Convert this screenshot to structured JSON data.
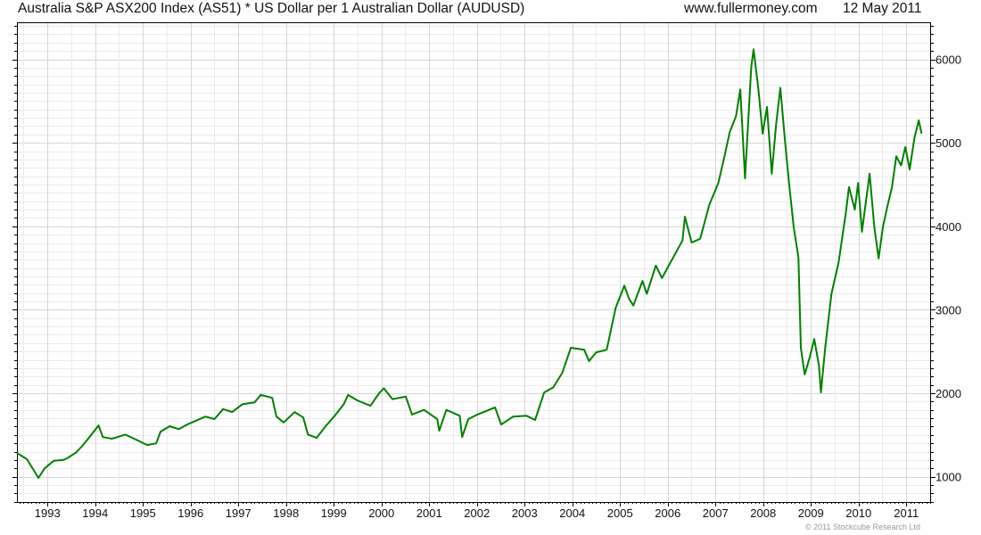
{
  "header": {
    "title": "Australia S&P ASX200 Index (AS51) * US Dollar per 1 Australian Dollar (AUDUSD)",
    "site": "www.fullermoney.com",
    "date": "12 May 2011"
  },
  "footer": {
    "copyright": "© 2011 Stockcube Research Ltd"
  },
  "colors": {
    "line": "#008000",
    "grid_major": "#d6d6d6",
    "grid_minor": "#ebebeb",
    "axis": "#000000"
  },
  "chart_data": {
    "type": "line",
    "title": "Australia S&P ASX200 Index (AS51) * US Dollar per 1 Australian Dollar (AUDUSD)",
    "xlabel": "",
    "ylabel": "",
    "xlim": [
      1992.36,
      2011.5
    ],
    "ylim": [
      697,
      6444
    ],
    "grid": true,
    "y_axis_side": "right",
    "x_tick_labels": [
      "1993",
      "1994",
      "1995",
      "1996",
      "1997",
      "1998",
      "1999",
      "2000",
      "2001",
      "2002",
      "2003",
      "2004",
      "2005",
      "2006",
      "2007",
      "2008",
      "2009",
      "2010",
      "2011"
    ],
    "y_tick_labels": [
      "1000",
      "2000",
      "3000",
      "4000",
      "5000",
      "6000"
    ],
    "series": [
      {
        "name": "AS51 * AUDUSD",
        "x": [
          1992.36,
          1992.57,
          1992.81,
          1992.94,
          1993.13,
          1993.32,
          1993.41,
          1993.6,
          1993.73,
          1993.88,
          1994.07,
          1994.16,
          1994.35,
          1994.63,
          1994.91,
          1995.09,
          1995.28,
          1995.37,
          1995.56,
          1995.75,
          1995.93,
          1996.31,
          1996.5,
          1996.68,
          1996.87,
          1997.09,
          1997.34,
          1997.47,
          1997.71,
          1997.8,
          1997.95,
          1998.18,
          1998.36,
          1998.46,
          1998.64,
          1998.83,
          1999.02,
          1999.21,
          1999.3,
          1999.49,
          1999.77,
          1999.95,
          2000.05,
          2000.23,
          2000.51,
          2000.64,
          2000.89,
          2001.17,
          2001.21,
          2001.36,
          2001.64,
          2001.69,
          2001.82,
          2002.01,
          2002.38,
          2002.51,
          2002.76,
          2003.04,
          2003.22,
          2003.41,
          2003.6,
          2003.79,
          2003.97,
          2004.25,
          2004.35,
          2004.5,
          2004.72,
          2004.91,
          2005.09,
          2005.19,
          2005.28,
          2005.47,
          2005.56,
          2005.75,
          2005.88,
          2006.03,
          2006.31,
          2006.36,
          2006.5,
          2006.68,
          2006.87,
          2007.06,
          2007.19,
          2007.3,
          2007.43,
          2007.52,
          2007.62,
          2007.75,
          2007.8,
          2007.9,
          2007.99,
          2008.08,
          2008.18,
          2008.27,
          2008.36,
          2008.46,
          2008.55,
          2008.64,
          2008.74,
          2008.79,
          2008.87,
          2008.98,
          2009.07,
          2009.17,
          2009.21,
          2009.3,
          2009.43,
          2009.58,
          2009.73,
          2009.8,
          2009.92,
          2009.99,
          2010.07,
          2010.23,
          2010.33,
          2010.42,
          2010.51,
          2010.61,
          2010.7,
          2010.79,
          2010.89,
          2010.98,
          2011.07,
          2011.17,
          2011.26,
          2011.32
        ],
        "values": [
          1285,
          1210,
          985,
          1100,
          1190,
          1200,
          1220,
          1290,
          1370,
          1475,
          1615,
          1475,
          1455,
          1505,
          1430,
          1380,
          1400,
          1540,
          1605,
          1570,
          1625,
          1720,
          1690,
          1810,
          1775,
          1870,
          1890,
          1980,
          1945,
          1720,
          1650,
          1775,
          1710,
          1505,
          1465,
          1605,
          1730,
          1870,
          1980,
          1915,
          1850,
          2000,
          2060,
          1930,
          1960,
          1745,
          1800,
          1690,
          1550,
          1800,
          1730,
          1475,
          1690,
          1745,
          1830,
          1625,
          1720,
          1730,
          1680,
          2010,
          2070,
          2245,
          2545,
          2520,
          2385,
          2490,
          2520,
          3025,
          3290,
          3130,
          3050,
          3345,
          3190,
          3530,
          3380,
          3540,
          3830,
          4115,
          3805,
          3850,
          4255,
          4520,
          4840,
          5130,
          5320,
          5640,
          4575,
          5910,
          6120,
          5640,
          5110,
          5430,
          4630,
          5215,
          5660,
          5000,
          4470,
          3990,
          3625,
          2545,
          2225,
          2440,
          2650,
          2330,
          2010,
          2545,
          3190,
          3565,
          4150,
          4470,
          4200,
          4520,
          3935,
          4630,
          3990,
          3615,
          3990,
          4255,
          4470,
          4840,
          4730,
          4950,
          4680,
          5055,
          5270,
          5110
        ]
      }
    ]
  }
}
